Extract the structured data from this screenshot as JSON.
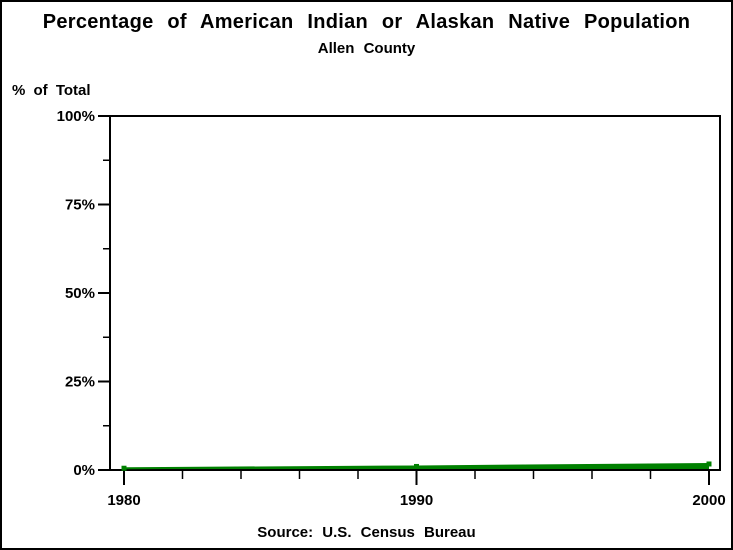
{
  "chart_data": {
    "type": "area",
    "title": "Percentage of American Indian or Alaskan Native Population",
    "subtitle": "Allen County",
    "ylabel": "% of Total",
    "xlabel": "",
    "source_note": "Source: U.S. Census Bureau",
    "x": [
      1980,
      1990,
      2000
    ],
    "series": [
      {
        "name": "American Indian or Alaskan Native",
        "values": [
          0.5,
          1.0,
          1.7
        ],
        "color": "#008000",
        "marker": "square"
      }
    ],
    "xlim": [
      1980,
      2000
    ],
    "ylim": [
      0,
      100
    ],
    "y_ticks": [
      {
        "value": 0,
        "label": "0%"
      },
      {
        "value": 25,
        "label": "25%"
      },
      {
        "value": 50,
        "label": "50%"
      },
      {
        "value": 75,
        "label": "75%"
      },
      {
        "value": 100,
        "label": "100%"
      }
    ],
    "y_minor_ticks": [
      12.5,
      37.5,
      62.5,
      87.5
    ],
    "x_ticks": [
      {
        "value": 1980,
        "label": "1980"
      },
      {
        "value": 1990,
        "label": "1990"
      },
      {
        "value": 2000,
        "label": "2000"
      }
    ],
    "x_minor_ticks": [
      1982,
      1984,
      1986,
      1988,
      1992,
      1994,
      1996,
      1998
    ],
    "grid": false,
    "legend": false,
    "plot_frame": true,
    "colors": {
      "series": "#008000",
      "axis": "#000000",
      "text": "#000000",
      "background": "#ffffff"
    }
  }
}
